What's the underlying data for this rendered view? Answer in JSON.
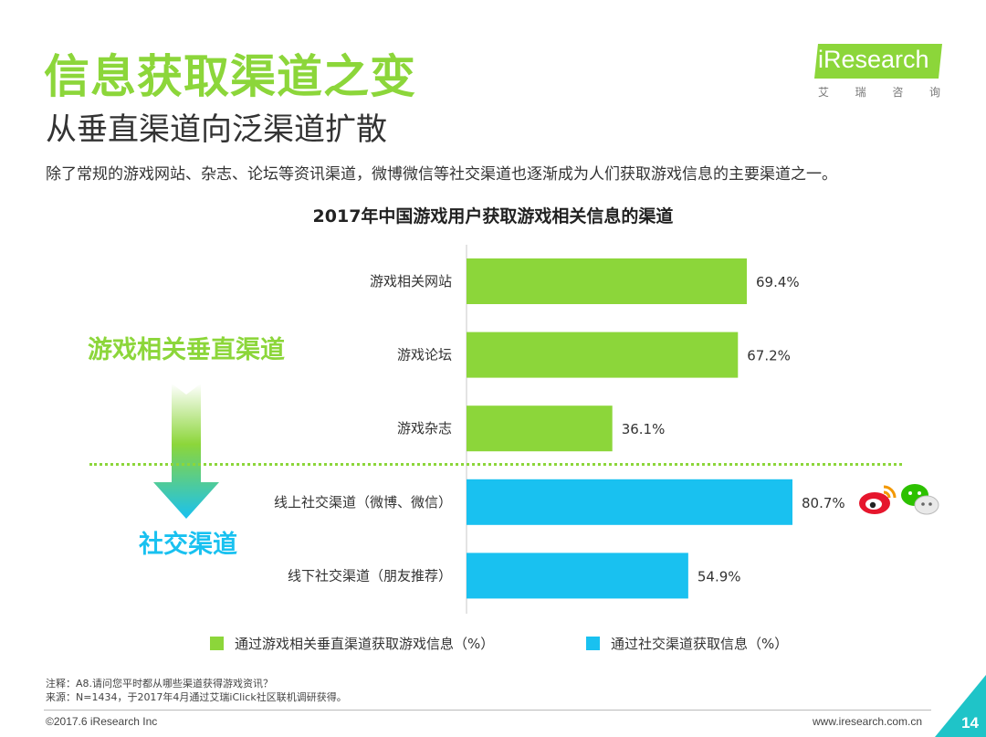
{
  "header": {
    "title": "信息获取渠道之变",
    "subtitle": "从垂直渠道向泛渠道扩散",
    "description": "除了常规的游戏网站、杂志、论坛等资讯渠道，微博微信等社交渠道也逐渐成为人们获取游戏信息的主要渠道之一。"
  },
  "logo": {
    "text": "iResearch",
    "sub": [
      "艾",
      "瑞",
      "咨",
      "询"
    ]
  },
  "side_labels": {
    "top": "游戏相关垂直渠道",
    "bottom": "社交渠道"
  },
  "notes": {
    "note": "注释：A8.请问您平时都从哪些渠道获得游戏资讯？",
    "source": "来源：N=1434，于2017年4月通过艾瑞iClick社区联机调研获得。"
  },
  "footer": {
    "copyright": "©2017.6 iResearch Inc",
    "website": "www.iresearch.com.cn",
    "page": "14"
  },
  "colors": {
    "green": "#8cd63a",
    "blue": "#19c1f0",
    "teal": "#1fc4c8"
  },
  "icons": [
    "weibo-icon",
    "wechat-icon"
  ],
  "chart_data": {
    "type": "bar",
    "orientation": "horizontal",
    "title": "2017年中国游戏用户获取游戏相关信息的渠道",
    "categories": [
      "游戏相关网站",
      "游戏论坛",
      "游戏杂志",
      "线上社交渠道（微博、微信）",
      "线下社交渠道（朋友推荐）"
    ],
    "values": [
      69.4,
      67.2,
      36.1,
      80.7,
      54.9
    ],
    "value_labels": [
      "69.4%",
      "67.2%",
      "36.1%",
      "80.7%",
      "54.9%"
    ],
    "group": [
      0,
      0,
      0,
      1,
      1
    ],
    "legend": [
      {
        "name": "通过游戏相关垂直渠道获取游戏信息（%）",
        "color": "#8cd63a"
      },
      {
        "name": "通过社交渠道获取信息（%）",
        "color": "#19c1f0"
      }
    ],
    "xlim": [
      0,
      100
    ],
    "grid": false,
    "legend_position": "bottom"
  }
}
